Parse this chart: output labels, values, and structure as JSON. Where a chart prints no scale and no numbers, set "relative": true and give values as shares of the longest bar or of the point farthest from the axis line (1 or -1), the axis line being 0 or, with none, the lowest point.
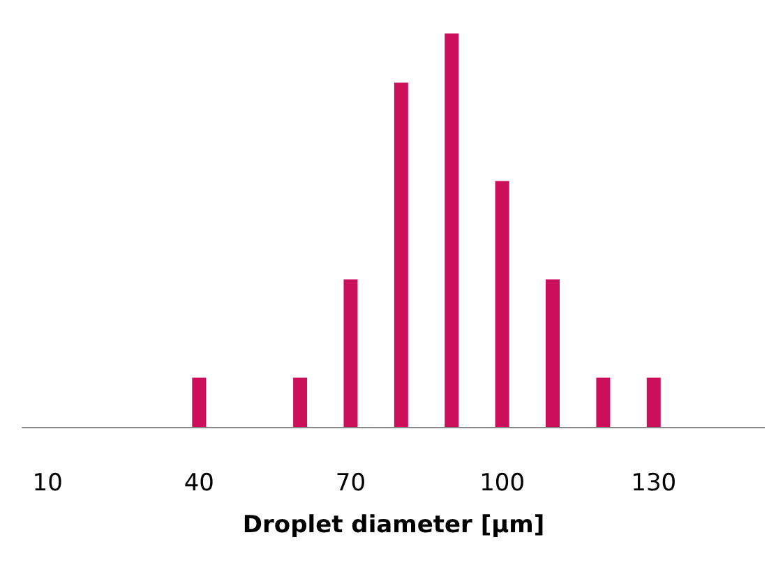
{
  "chart_data": {
    "type": "bar",
    "xlabel": "Droplet diameter [µm]",
    "x": [
      40,
      60,
      70,
      80,
      90,
      100,
      110,
      120,
      130
    ],
    "values": [
      0.125,
      0.125,
      0.375,
      0.875,
      1,
      0.625,
      0.375,
      0.125,
      0.125
    ],
    "color": "#cc0f5a",
    "relative": true,
    "xlim": [
      5,
      152
    ],
    "xticks": [
      10,
      40,
      70,
      100,
      130
    ]
  }
}
